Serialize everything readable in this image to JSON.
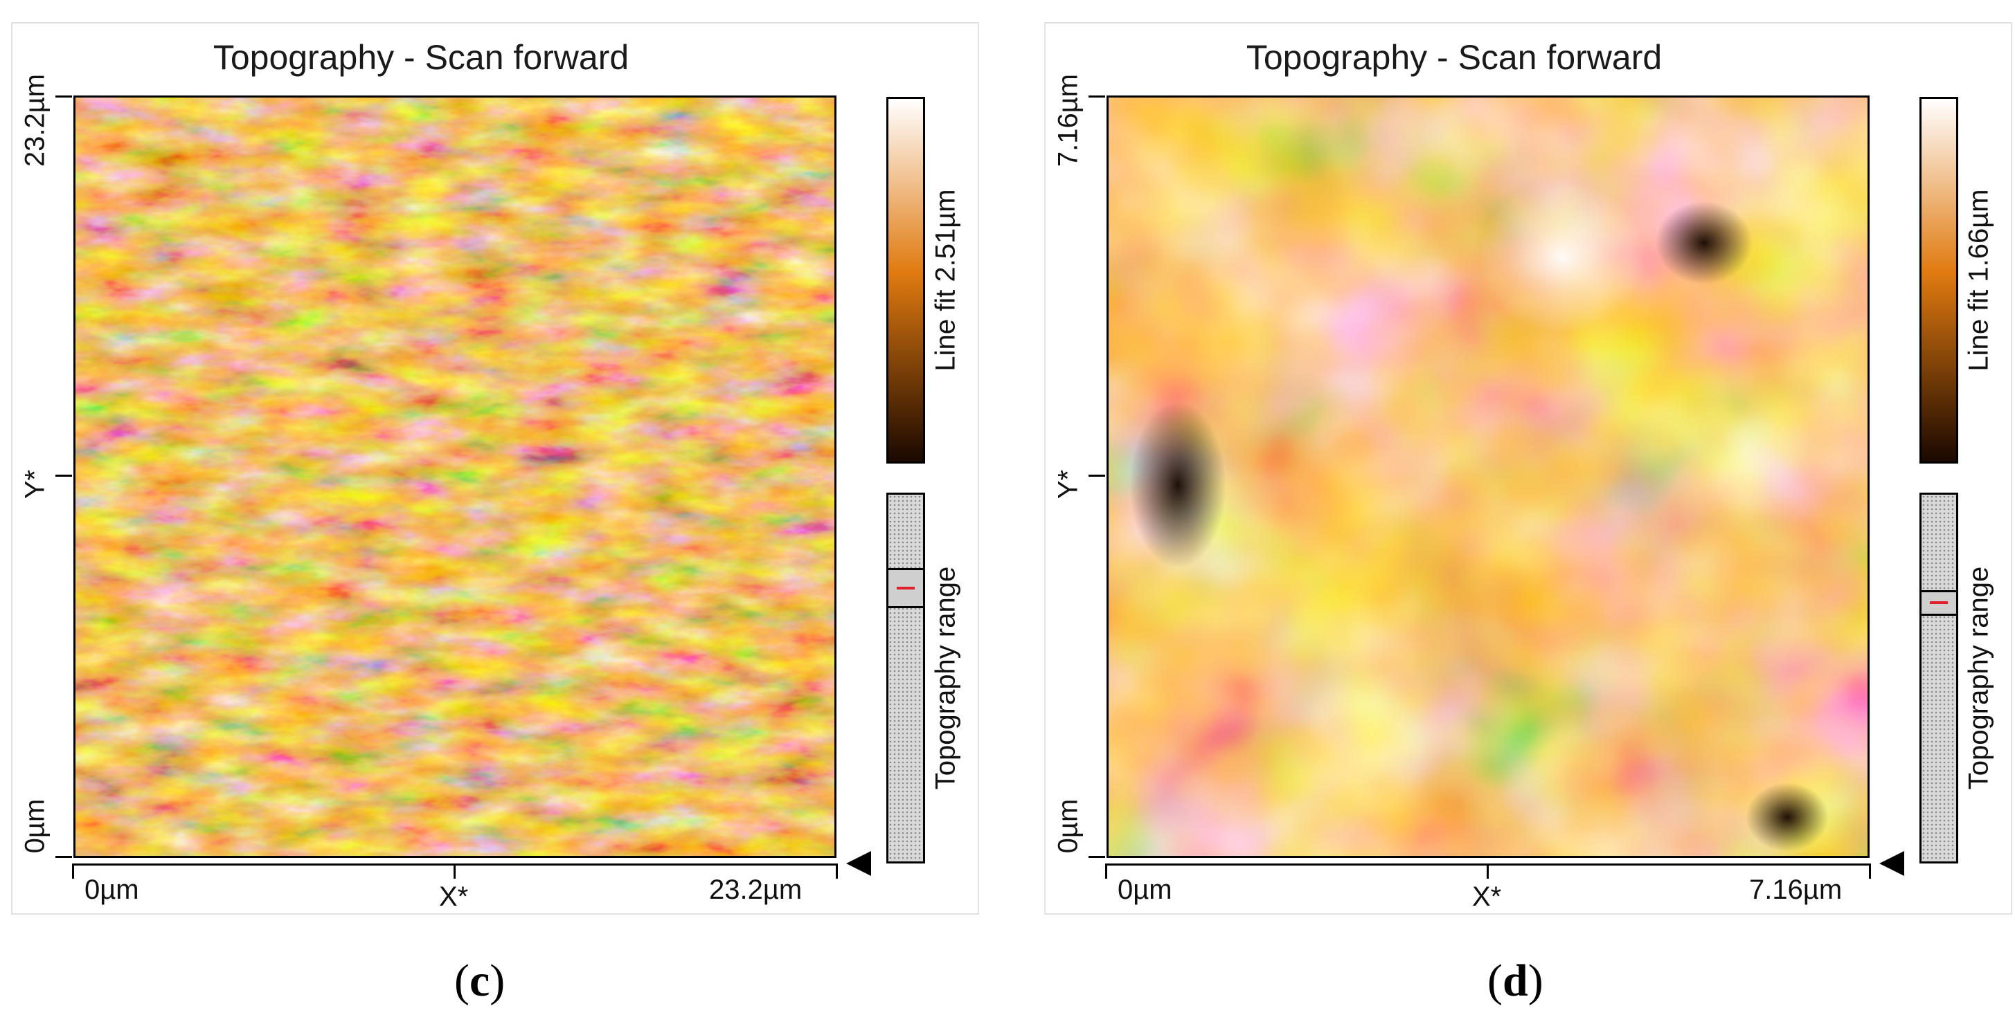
{
  "panels": {
    "c": {
      "title": "Topography - Scan forward",
      "y_top_tick": "23.2µm",
      "y_axis_label": "Y*",
      "y_bottom_tick": "0µm",
      "x_left_tick": "0µm",
      "x_axis_label": "X*",
      "x_right_tick": "23.2µm",
      "colorbar_label": "Line fit 2.51µm",
      "range_label": "Topography range",
      "range_window": [
        0.2,
        0.31
      ],
      "caption_open": "(",
      "caption_letter": "c",
      "caption_close": ")"
    },
    "d": {
      "title": "Topography - Scan forward",
      "y_top_tick": "7.16µm",
      "y_axis_label": "Y*",
      "y_bottom_tick": "0µm",
      "x_left_tick": "0µm",
      "x_axis_label": "X*",
      "x_right_tick": "7.16µm",
      "colorbar_label": "Line fit 1.66µm",
      "range_label": "Topography range",
      "range_window": [
        0.26,
        0.33
      ],
      "caption_open": "(",
      "caption_letter": "d",
      "caption_close": ")"
    }
  },
  "colors": {
    "colormap_low": "#1a0800",
    "colormap_mid": "#e07a10",
    "colormap_high": "#ffffff",
    "range_marker": "#e0202a"
  }
}
